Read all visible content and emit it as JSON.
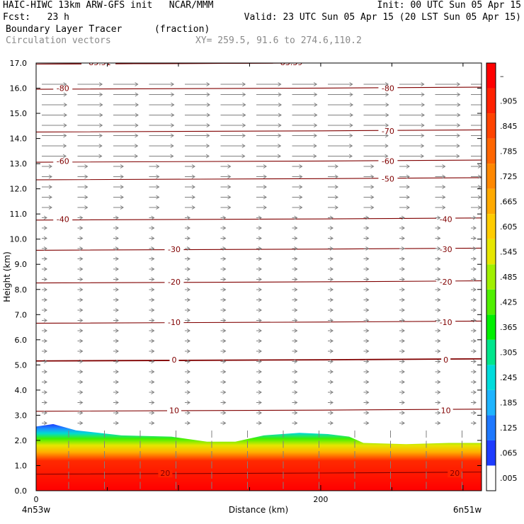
{
  "header": {
    "line1_left": "HAIC-HIWC 13km ARW-GFS init   NCAR/MMM",
    "line1_right": "Init: 00 UTC Sun 05 Apr 15",
    "line2_left": "Fcst:   23 h",
    "line2_right": "Valid: 23 UTC Sun 05 Apr 15 (20 LST Sun 05 Apr 15)",
    "field_name": "Boundary Layer Tracer",
    "field_units": "(fraction)",
    "vectors_label": "Circulation vectors",
    "xy_label": "XY= 259.5, 91.6 to 274.6,110.2"
  },
  "chart_data": {
    "type": "heatmap",
    "title": "Boundary Layer Tracer",
    "xlabel": "Distance (km)",
    "ylabel": "Height (km)",
    "xlim": [
      0,
      313
    ],
    "ylim": [
      0,
      17
    ],
    "x_ticks": [
      {
        "value": 0,
        "label": "0"
      },
      {
        "value": 200,
        "label": "200"
      }
    ],
    "x_end_labels": {
      "left": "4n53w",
      "right": "6n51w"
    },
    "y_ticks": [
      "0.0",
      "1.0",
      "2.0",
      "3.0",
      "4.0",
      "5.0",
      "6.0",
      "7.0",
      "8.0",
      "9.0",
      "10.0",
      "11.0",
      "12.0",
      "13.0",
      "14.0",
      "15.0",
      "16.0",
      "17.0"
    ],
    "colorbar": {
      "labels": [
        ".005",
        ".065",
        ".125",
        ".185",
        ".245",
        ".305",
        ".365",
        ".425",
        ".485",
        ".545",
        ".605",
        ".665",
        ".725",
        ".785",
        ".845",
        ".905",
        "–"
      ],
      "colors": [
        "#ffffff",
        "#1e3cff",
        "#1e78ff",
        "#1eb4ff",
        "#00dcdc",
        "#00e68c",
        "#00f000",
        "#50f000",
        "#a0f000",
        "#e6e600",
        "#ffcc00",
        "#ffaa00",
        "#ff8800",
        "#ff6600",
        "#ff4400",
        "#ff2200",
        "#ff0000"
      ]
    },
    "tracer_top_km": {
      "x": [
        0,
        12,
        28,
        60,
        95,
        120,
        140,
        160,
        185,
        205,
        220,
        230,
        260,
        290,
        313
      ],
      "values": [
        2.55,
        2.65,
        2.4,
        2.2,
        2.15,
        1.95,
        1.95,
        2.2,
        2.3,
        2.25,
        2.15,
        1.9,
        1.85,
        1.9,
        1.9
      ]
    },
    "temperature_contours": {
      "color": "#800000",
      "lines": [
        {
          "label": "20",
          "height_km": 0.7
        },
        {
          "label": "10",
          "height_km": 3.2
        },
        {
          "label": "0",
          "height_km": 5.2
        },
        {
          "label": "-10",
          "height_km": 6.7
        },
        {
          "label": "-20",
          "height_km": 8.3
        },
        {
          "label": "-30",
          "height_km": 9.6
        },
        {
          "label": "-40",
          "height_km": 10.8
        },
        {
          "label": "-50",
          "height_km": 12.4
        },
        {
          "label": "-60",
          "height_km": 13.1
        },
        {
          "label": "-70",
          "height_km": 14.3
        },
        {
          "label": "-80",
          "height_km": 16.0
        },
        {
          "label": "-83.39",
          "height_km": 17.0
        },
        {
          "label": "-85.51",
          "height_km": 17.0
        }
      ]
    },
    "vectors_color": "#808080"
  }
}
